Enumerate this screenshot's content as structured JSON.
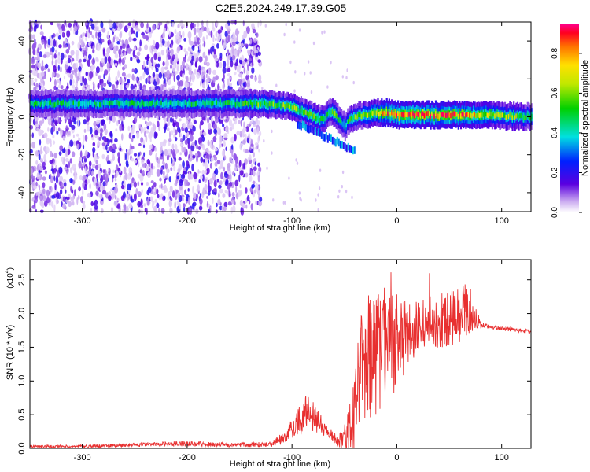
{
  "figure_title": "C2E5.2024.249.17.39.G05",
  "colors": {
    "snr_line": "#e83030",
    "spectrum_band": "#5a00e0",
    "background": "#ffffff",
    "axes": "#000000"
  },
  "chart_data": [
    {
      "type": "heatmap",
      "title": "C2E5.2024.249.17.39.G05",
      "xlabel": "Height of straight line (km)",
      "ylabel": "Frequency (Hz)",
      "xlim": [
        -350,
        128
      ],
      "ylim": [
        -50,
        50
      ],
      "xticks": [
        "-300",
        "-200",
        "-100",
        "0",
        "100"
      ],
      "yticks": [
        "-40",
        "-20",
        "0",
        "20",
        "40"
      ],
      "colorbar": {
        "label": "Normalized spectral amplitude",
        "range": [
          0,
          0.95
        ],
        "ticks": [
          "0.0",
          "0.2",
          "0.4",
          "0.6",
          "0.8"
        ]
      },
      "ridge": {
        "x": [
          -350,
          -300,
          -250,
          -200,
          -150,
          -130,
          -110,
          -100,
          -90,
          -80,
          -70,
          -65,
          -60,
          -55,
          -50,
          -45,
          -40,
          -30,
          -20,
          -10,
          0,
          20,
          40,
          60,
          80,
          100,
          128
        ],
        "frequency_hz": [
          7,
          7,
          7,
          7,
          7,
          7,
          6,
          5,
          3,
          0,
          -2,
          3,
          2,
          -2,
          -5,
          -1,
          0,
          1,
          2,
          2,
          1,
          1,
          1,
          1,
          1,
          0.5,
          0
        ],
        "peak_amplitude": [
          0.45,
          0.45,
          0.45,
          0.45,
          0.5,
          0.55,
          0.55,
          0.6,
          0.55,
          0.6,
          0.5,
          0.55,
          0.6,
          0.45,
          0.4,
          0.55,
          0.55,
          0.6,
          0.7,
          0.8,
          0.85,
          0.85,
          0.85,
          0.85,
          0.7,
          0.6,
          0.55
        ]
      },
      "noise_region_x": [
        -350,
        -130
      ]
    },
    {
      "type": "line",
      "xlabel": "Height of straight line (km)",
      "ylabel": "SNR (10 * v/v)",
      "y_multiplier": "(x10",
      "y_multiplier_exp": "4",
      "xlim": [
        -350,
        128
      ],
      "ylim": [
        0,
        2.8
      ],
      "xticks": [
        "-300",
        "-200",
        "-100",
        "0",
        "100"
      ],
      "yticks": [
        "0.0",
        "0.5",
        "1.0",
        "1.5",
        "2.0",
        "2.5"
      ],
      "series": [
        {
          "x": [
            -350,
            -300,
            -250,
            -200,
            -150,
            -120,
            -105,
            -100,
            -95,
            -90,
            -85,
            -80,
            -75,
            -70,
            -65,
            -60,
            -55,
            -50,
            -45,
            -40,
            -35,
            -30,
            -25,
            -20,
            -15,
            -10,
            -5,
            0,
            5,
            10,
            20,
            30,
            40,
            50,
            60,
            70,
            75,
            80,
            90,
            100,
            110,
            128
          ],
          "y": [
            0.03,
            0.03,
            0.05,
            0.07,
            0.05,
            0.06,
            0.2,
            0.3,
            0.4,
            0.45,
            0.6,
            0.5,
            0.4,
            0.3,
            0.25,
            0.15,
            0.1,
            0.15,
            0.3,
            0.6,
            1.0,
            1.25,
            1.35,
            1.45,
            1.5,
            1.6,
            1.55,
            1.6,
            1.6,
            1.65,
            1.75,
            1.85,
            1.9,
            1.9,
            2.0,
            2.05,
            1.95,
            1.82,
            1.8,
            1.78,
            1.76,
            1.73
          ],
          "spread": [
            0.02,
            0.02,
            0.03,
            0.04,
            0.03,
            0.04,
            0.1,
            0.15,
            0.2,
            0.25,
            0.25,
            0.25,
            0.2,
            0.15,
            0.1,
            0.08,
            0.1,
            0.2,
            0.4,
            0.7,
            0.9,
            1.0,
            1.0,
            1.0,
            0.9,
            0.9,
            0.8,
            0.7,
            0.6,
            0.55,
            0.45,
            0.4,
            0.4,
            0.4,
            0.45,
            0.35,
            0.2,
            0.05,
            0.03,
            0.03,
            0.03,
            0.03
          ]
        }
      ]
    }
  ]
}
